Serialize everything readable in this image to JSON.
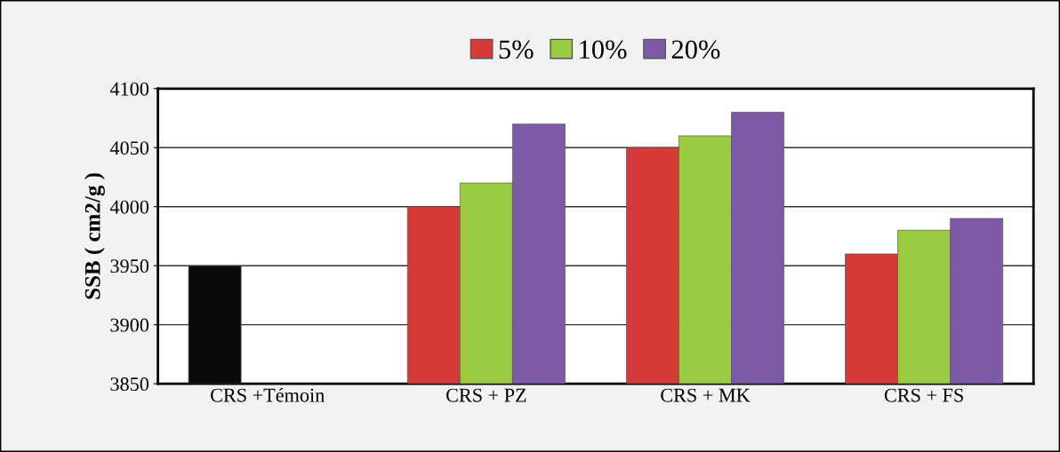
{
  "chart_data": {
    "type": "bar",
    "ylabel": "SSB ( cm2/g )",
    "categories": [
      "CRS +Témoin",
      "CRS + PZ",
      "CRS + MK",
      "CRS + FS"
    ],
    "series": [
      {
        "name": "5%",
        "color": "#d63a38",
        "colors": [
          "#0a0a0a",
          "#d63a38",
          "#d63a38",
          "#d63a38"
        ],
        "values": [
          3950,
          4000,
          4050,
          3960
        ]
      },
      {
        "name": "10%",
        "color": "#9bcb43",
        "values": [
          null,
          4020,
          4060,
          3980
        ]
      },
      {
        "name": "20%",
        "color": "#7d5aa6",
        "values": [
          null,
          4070,
          4080,
          3990
        ]
      }
    ],
    "ylim": [
      3850,
      4100
    ],
    "yticks": [
      3850,
      3900,
      3950,
      4000,
      4050,
      4100
    ],
    "grid": "y",
    "legend": "top"
  }
}
